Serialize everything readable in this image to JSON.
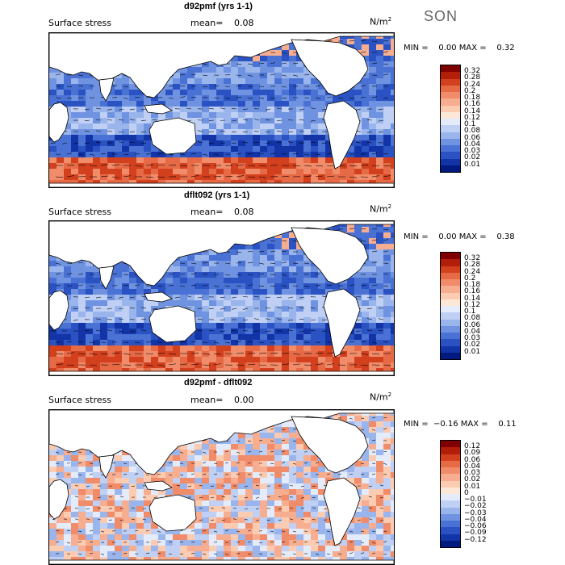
{
  "season": "SON",
  "panels": [
    {
      "title": "d92pmf (yrs 1-1)",
      "field": "Surface stress",
      "mean_label": "mean=",
      "mean_value": "0.08",
      "units": "N/m",
      "units_exp": "2",
      "minmax": "MIN =    0.00 MAX =    0.32",
      "colorbar_labels": [
        "0.32",
        "0.28",
        "0.24",
        "0.2",
        "0.18",
        "0.16",
        "0.14",
        "0.12",
        "0.1",
        "0.08",
        "0.06",
        "0.04",
        "0.03",
        "0.02",
        "0.01"
      ]
    },
    {
      "title": "dflt092 (yrs 1-1)",
      "field": "Surface stress",
      "mean_label": "mean=",
      "mean_value": "0.08",
      "units": "N/m",
      "units_exp": "2",
      "minmax": "MIN =    0.00 MAX =    0.38",
      "colorbar_labels": [
        "0.32",
        "0.28",
        "0.24",
        "0.2",
        "0.18",
        "0.16",
        "0.14",
        "0.12",
        "0.1",
        "0.08",
        "0.06",
        "0.04",
        "0.03",
        "0.02",
        "0.01"
      ]
    },
    {
      "title": "d92pmf - dflt092",
      "field": "Surface stress",
      "mean_label": "mean=",
      "mean_value": "0.00",
      "units": "N/m",
      "units_exp": "2",
      "minmax": "MIN =  −0.16 MAX =    0.11",
      "colorbar_labels": [
        "0.12",
        "0.09",
        "0.06",
        "0.04",
        "0.03",
        "0.02",
        "0.01",
        "0",
        "−0.01",
        "−0.02",
        "−0.03",
        "−0.04",
        "−0.06",
        "−0.09",
        "−0.12"
      ]
    }
  ],
  "colors": {
    "scale_abs": [
      "#7f0000",
      "#b21e0a",
      "#d2401e",
      "#e66a46",
      "#f08c6a",
      "#f6ad90",
      "#fbcbb2",
      "#fde8d8",
      "#e4ecfb",
      "#bfd0f4",
      "#99b5ec",
      "#6f93e0",
      "#4a72d4",
      "#2a52c2",
      "#1234a6",
      "#001a80"
    ],
    "scale_diff": [
      "#7f0000",
      "#b21e0a",
      "#d2401e",
      "#e66a46",
      "#f08c6a",
      "#f6ad90",
      "#fbcbb2",
      "#fde8d8",
      "#e4ecfb",
      "#bfd0f4",
      "#99b5ec",
      "#6f93e0",
      "#4a72d4",
      "#2a52c2",
      "#1234a6",
      "#001a80"
    ],
    "land": "#ffffff"
  }
}
